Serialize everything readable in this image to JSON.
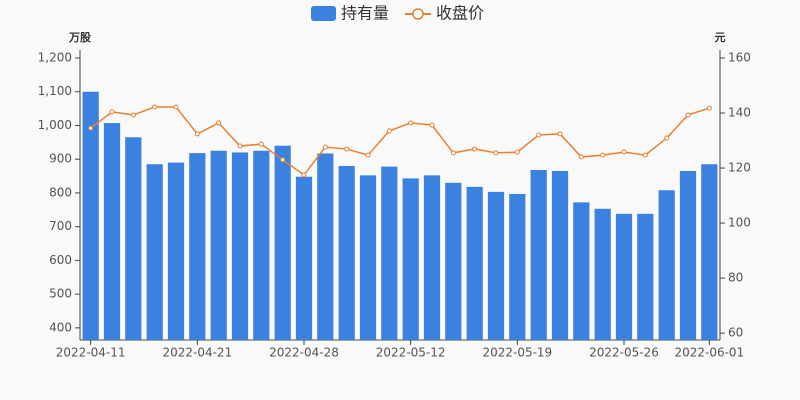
{
  "chart_data": {
    "type": "bar_line",
    "legend": [
      "持有量",
      "收盘价"
    ],
    "ylabel": "万股",
    "y2label": "元",
    "categories": [
      "2022-04-11",
      null,
      null,
      null,
      null,
      "2022-04-21",
      null,
      null,
      null,
      null,
      "2022-04-28",
      null,
      null,
      null,
      null,
      "2022-05-12",
      null,
      null,
      null,
      null,
      "2022-05-19",
      null,
      null,
      null,
      null,
      "2022-05-26",
      null,
      null,
      null,
      "2022-06-01"
    ],
    "series": [
      {
        "name": "持有量",
        "type": "bar",
        "color": "#3b82e0",
        "values": [
          1100,
          1007,
          965,
          885,
          890,
          918,
          925,
          920,
          925,
          940,
          848,
          917,
          880,
          852,
          878,
          843,
          852,
          830,
          818,
          803,
          797,
          868,
          865,
          772,
          753,
          738,
          738,
          808,
          865,
          885
        ]
      },
      {
        "name": "收盘价",
        "type": "line",
        "axis": "y2",
        "color": "#e8812f",
        "values": [
          134.5,
          140.4,
          139.3,
          142.2,
          142.2,
          132.4,
          136.4,
          128,
          128.7,
          123,
          117.5,
          127.6,
          126.9,
          124.7,
          133.5,
          136.4,
          135.6,
          125.5,
          126.9,
          125.5,
          125.8,
          132,
          132.4,
          124,
          124.7,
          125.8,
          124.7,
          130.9,
          139.3,
          141.8
        ]
      }
    ],
    "ylim": [
      364,
      1200
    ],
    "yticks": [
      400,
      500,
      600,
      700,
      800,
      900,
      {
        "value": 1000,
        "label": "1,000"
      },
      {
        "value": 1100,
        "label": "1,100"
      },
      {
        "value": 1200,
        "label": "1,200"
      }
    ],
    "y2lim": [
      57.5,
      160
    ],
    "y2ticks": [
      60,
      80,
      100,
      120,
      140,
      160
    ]
  }
}
